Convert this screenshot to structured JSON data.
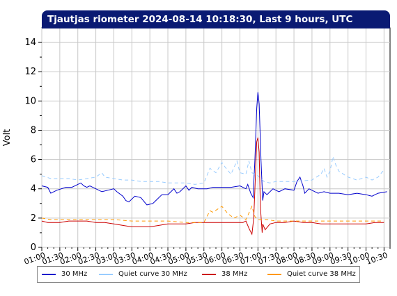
{
  "chart_data": {
    "type": "line",
    "title": "Tjautjas riometer 2024-08-14 10:18:30, Last 9 hours, UTC",
    "ylabel": "Volt",
    "xlabel": "",
    "ylim": [
      0,
      15
    ],
    "yticks": [
      0,
      2,
      4,
      6,
      8,
      10,
      12,
      14
    ],
    "xlim": [
      "01:00",
      "10:40"
    ],
    "xticks": [
      "01:00",
      "01:30",
      "02:00",
      "02:30",
      "03:00",
      "03:30",
      "04:00",
      "04:30",
      "05:00",
      "05:30",
      "06:00",
      "06:30",
      "07:00",
      "07:30",
      "08:00",
      "08:30",
      "09:00",
      "09:30",
      "10:00",
      "10:30"
    ],
    "grid": true,
    "legend_position": "bottom",
    "series": [
      {
        "name": "30 MHz",
        "color": "#0000cc",
        "style": "solid",
        "points": [
          [
            "01:00",
            4.2
          ],
          [
            "01:10",
            4.1
          ],
          [
            "01:15",
            3.7
          ],
          [
            "01:25",
            3.9
          ],
          [
            "01:40",
            4.1
          ],
          [
            "01:50",
            4.1
          ],
          [
            "02:00",
            4.3
          ],
          [
            "02:05",
            4.4
          ],
          [
            "02:10",
            4.2
          ],
          [
            "02:15",
            4.1
          ],
          [
            "02:20",
            4.2
          ],
          [
            "02:30",
            4.0
          ],
          [
            "02:40",
            3.8
          ],
          [
            "02:50",
            3.9
          ],
          [
            "03:00",
            4.0
          ],
          [
            "03:05",
            3.8
          ],
          [
            "03:15",
            3.5
          ],
          [
            "03:20",
            3.2
          ],
          [
            "03:25",
            3.1
          ],
          [
            "03:35",
            3.5
          ],
          [
            "03:45",
            3.4
          ],
          [
            "03:55",
            2.9
          ],
          [
            "04:05",
            3.0
          ],
          [
            "04:10",
            3.2
          ],
          [
            "04:20",
            3.6
          ],
          [
            "04:30",
            3.6
          ],
          [
            "04:40",
            4.0
          ],
          [
            "04:45",
            3.7
          ],
          [
            "04:50",
            3.8
          ],
          [
            "05:00",
            4.2
          ],
          [
            "05:05",
            3.9
          ],
          [
            "05:10",
            4.1
          ],
          [
            "05:20",
            4.0
          ],
          [
            "05:35",
            4.0
          ],
          [
            "05:45",
            4.1
          ],
          [
            "06:00",
            4.1
          ],
          [
            "06:15",
            4.1
          ],
          [
            "06:30",
            4.2
          ],
          [
            "06:40",
            4.0
          ],
          [
            "06:43",
            4.3
          ],
          [
            "06:48",
            3.7
          ],
          [
            "06:52",
            3.4
          ],
          [
            "06:55",
            6.0
          ],
          [
            "06:58",
            9.5
          ],
          [
            "07:00",
            10.6
          ],
          [
            "07:02",
            9.8
          ],
          [
            "07:05",
            6.0
          ],
          [
            "07:08",
            3.2
          ],
          [
            "07:10",
            3.8
          ],
          [
            "07:15",
            3.6
          ],
          [
            "07:25",
            4.0
          ],
          [
            "07:35",
            3.8
          ],
          [
            "07:45",
            4.0
          ],
          [
            "08:00",
            3.9
          ],
          [
            "08:05",
            4.5
          ],
          [
            "08:10",
            4.8
          ],
          [
            "08:15",
            4.2
          ],
          [
            "08:18",
            3.7
          ],
          [
            "08:25",
            4.0
          ],
          [
            "08:35",
            3.8
          ],
          [
            "08:40",
            3.7
          ],
          [
            "08:50",
            3.8
          ],
          [
            "09:00",
            3.7
          ],
          [
            "09:15",
            3.7
          ],
          [
            "09:30",
            3.6
          ],
          [
            "09:45",
            3.7
          ],
          [
            "10:00",
            3.6
          ],
          [
            "10:10",
            3.5
          ],
          [
            "10:20",
            3.7
          ],
          [
            "10:35",
            3.8
          ]
        ]
      },
      {
        "name": "Quiet curve 30 MHz",
        "color": "#99ccff",
        "style": "dashed",
        "points": [
          [
            "01:00",
            4.9
          ],
          [
            "01:15",
            4.7
          ],
          [
            "01:30",
            4.7
          ],
          [
            "01:45",
            4.7
          ],
          [
            "02:00",
            4.6
          ],
          [
            "02:15",
            4.7
          ],
          [
            "02:30",
            4.8
          ],
          [
            "02:40",
            5.1
          ],
          [
            "02:45",
            4.8
          ],
          [
            "03:00",
            4.7
          ],
          [
            "03:15",
            4.6
          ],
          [
            "03:30",
            4.6
          ],
          [
            "03:45",
            4.5
          ],
          [
            "04:00",
            4.5
          ],
          [
            "04:15",
            4.5
          ],
          [
            "04:30",
            4.4
          ],
          [
            "04:45",
            4.4
          ],
          [
            "05:00",
            4.4
          ],
          [
            "05:15",
            4.3
          ],
          [
            "05:30",
            4.4
          ],
          [
            "05:40",
            5.4
          ],
          [
            "05:50",
            5.1
          ],
          [
            "06:00",
            5.8
          ],
          [
            "06:05",
            5.5
          ],
          [
            "06:15",
            5.0
          ],
          [
            "06:25",
            5.9
          ],
          [
            "06:30",
            5.1
          ],
          [
            "06:40",
            5.0
          ],
          [
            "06:45",
            5.9
          ],
          [
            "06:50",
            5.1
          ],
          [
            "07:00",
            4.9
          ],
          [
            "07:10",
            4.5
          ],
          [
            "07:20",
            4.4
          ],
          [
            "07:30",
            4.5
          ],
          [
            "08:00",
            4.5
          ],
          [
            "08:30",
            4.6
          ],
          [
            "08:45",
            5.0
          ],
          [
            "08:50",
            5.4
          ],
          [
            "08:55",
            4.8
          ],
          [
            "09:00",
            5.2
          ],
          [
            "09:05",
            6.2
          ],
          [
            "09:10",
            5.6
          ],
          [
            "09:15",
            5.2
          ],
          [
            "09:30",
            4.8
          ],
          [
            "09:45",
            4.6
          ],
          [
            "10:00",
            4.8
          ],
          [
            "10:10",
            4.6
          ],
          [
            "10:20",
            4.8
          ],
          [
            "10:30",
            5.3
          ]
        ]
      },
      {
        "name": "38 MHz",
        "color": "#cc0000",
        "style": "solid",
        "points": [
          [
            "01:00",
            1.8
          ],
          [
            "01:10",
            1.7
          ],
          [
            "01:20",
            1.7
          ],
          [
            "01:30",
            1.7
          ],
          [
            "01:45",
            1.8
          ],
          [
            "02:00",
            1.8
          ],
          [
            "02:15",
            1.8
          ],
          [
            "02:30",
            1.7
          ],
          [
            "02:45",
            1.7
          ],
          [
            "03:00",
            1.6
          ],
          [
            "03:15",
            1.5
          ],
          [
            "03:30",
            1.4
          ],
          [
            "03:45",
            1.4
          ],
          [
            "04:00",
            1.4
          ],
          [
            "04:15",
            1.5
          ],
          [
            "04:30",
            1.6
          ],
          [
            "04:45",
            1.6
          ],
          [
            "05:00",
            1.6
          ],
          [
            "05:15",
            1.7
          ],
          [
            "05:30",
            1.7
          ],
          [
            "06:00",
            1.7
          ],
          [
            "06:20",
            1.7
          ],
          [
            "06:35",
            1.7
          ],
          [
            "06:40",
            1.8
          ],
          [
            "06:45",
            1.3
          ],
          [
            "06:50",
            0.9
          ],
          [
            "06:53",
            2.0
          ],
          [
            "06:55",
            4.0
          ],
          [
            "06:58",
            7.2
          ],
          [
            "07:00",
            7.5
          ],
          [
            "07:02",
            6.5
          ],
          [
            "07:04",
            2.8
          ],
          [
            "07:07",
            1.0
          ],
          [
            "07:08",
            1.6
          ],
          [
            "07:12",
            1.2
          ],
          [
            "07:20",
            1.6
          ],
          [
            "07:30",
            1.7
          ],
          [
            "07:45",
            1.7
          ],
          [
            "08:00",
            1.8
          ],
          [
            "08:15",
            1.7
          ],
          [
            "08:30",
            1.7
          ],
          [
            "08:45",
            1.6
          ],
          [
            "09:00",
            1.6
          ],
          [
            "09:15",
            1.6
          ],
          [
            "09:30",
            1.6
          ],
          [
            "09:45",
            1.6
          ],
          [
            "10:00",
            1.6
          ],
          [
            "10:15",
            1.7
          ],
          [
            "10:30",
            1.7
          ]
        ]
      },
      {
        "name": "Quiet curve 38 MHz",
        "color": "#ff9900",
        "style": "dashed",
        "points": [
          [
            "01:00",
            2.0
          ],
          [
            "01:15",
            1.9
          ],
          [
            "01:30",
            1.9
          ],
          [
            "02:00",
            1.9
          ],
          [
            "02:30",
            1.9
          ],
          [
            "03:00",
            1.9
          ],
          [
            "03:30",
            1.8
          ],
          [
            "04:00",
            1.8
          ],
          [
            "04:30",
            1.8
          ],
          [
            "05:00",
            1.7
          ],
          [
            "05:30",
            1.7
          ],
          [
            "05:40",
            2.5
          ],
          [
            "05:45",
            2.4
          ],
          [
            "06:00",
            2.8
          ],
          [
            "06:10",
            2.3
          ],
          [
            "06:20",
            2.0
          ],
          [
            "06:30",
            2.2
          ],
          [
            "06:40",
            1.9
          ],
          [
            "06:50",
            2.8
          ],
          [
            "06:55",
            2.1
          ],
          [
            "07:00",
            1.9
          ],
          [
            "07:15",
            1.9
          ],
          [
            "07:30",
            1.8
          ],
          [
            "08:00",
            1.8
          ],
          [
            "08:30",
            1.8
          ],
          [
            "09:00",
            1.8
          ],
          [
            "09:30",
            1.8
          ],
          [
            "10:00",
            1.8
          ],
          [
            "10:15",
            1.8
          ],
          [
            "10:30",
            1.8
          ]
        ]
      }
    ]
  }
}
